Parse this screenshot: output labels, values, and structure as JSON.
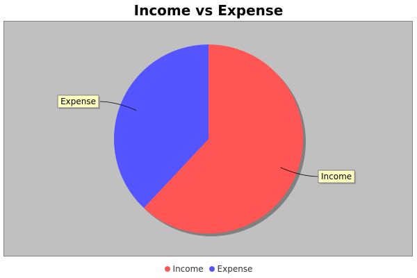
{
  "chart_data": {
    "type": "pie",
    "title": "Income vs Expense",
    "slices": [
      {
        "label": "Income",
        "value": 62,
        "color": "#ff5555"
      },
      {
        "label": "Expense",
        "value": 38,
        "color": "#5555ff"
      }
    ],
    "legend_placement": "bottom",
    "plot_background": "#c0c0c0"
  }
}
